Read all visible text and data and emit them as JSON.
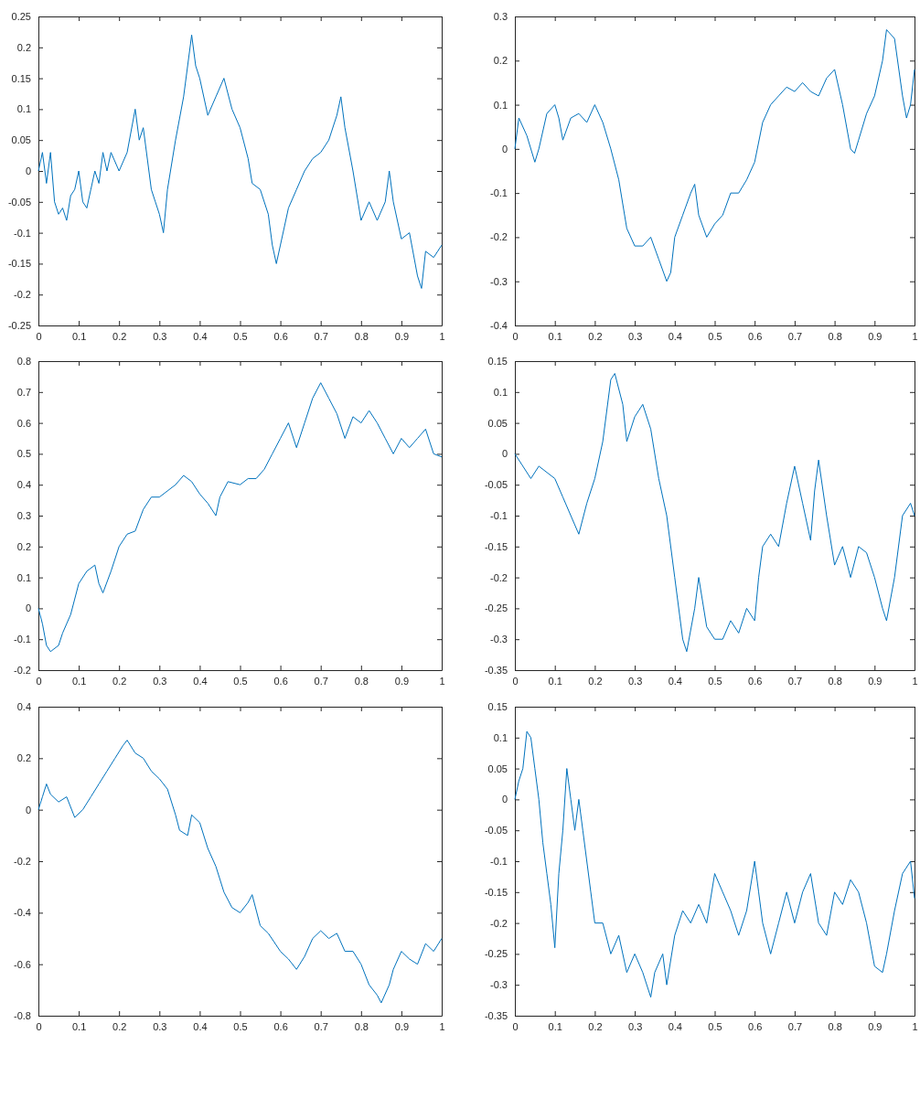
{
  "chart_data": [
    {
      "type": "line",
      "color": "#0072bd",
      "xlim": [
        0,
        1
      ],
      "xticks": [
        0,
        0.1,
        0.2,
        0.3,
        0.4,
        0.5,
        0.6,
        0.7,
        0.8,
        0.9,
        1
      ],
      "ylim": [
        -0.25,
        0.25
      ],
      "yticks": [
        -0.25,
        -0.2,
        -0.15,
        -0.1,
        -0.05,
        0,
        0.05,
        0.1,
        0.15,
        0.2,
        0.25
      ],
      "x": [
        0,
        0.01,
        0.02,
        0.03,
        0.04,
        0.05,
        0.06,
        0.07,
        0.08,
        0.09,
        0.1,
        0.11,
        0.12,
        0.13,
        0.14,
        0.15,
        0.16,
        0.17,
        0.18,
        0.2,
        0.22,
        0.24,
        0.25,
        0.26,
        0.28,
        0.29,
        0.3,
        0.31,
        0.32,
        0.34,
        0.36,
        0.38,
        0.39,
        0.4,
        0.42,
        0.44,
        0.46,
        0.48,
        0.5,
        0.52,
        0.53,
        0.55,
        0.57,
        0.58,
        0.59,
        0.6,
        0.62,
        0.64,
        0.66,
        0.68,
        0.7,
        0.72,
        0.74,
        0.75,
        0.76,
        0.78,
        0.8,
        0.82,
        0.84,
        0.86,
        0.87,
        0.88,
        0.9,
        0.92,
        0.94,
        0.95,
        0.96,
        0.98,
        1
      ],
      "values": [
        0,
        0.03,
        -0.02,
        0.03,
        -0.05,
        -0.07,
        -0.06,
        -0.08,
        -0.04,
        -0.03,
        0,
        -0.05,
        -0.06,
        -0.03,
        0,
        -0.02,
        0.03,
        0,
        0.03,
        0,
        0.03,
        0.1,
        0.05,
        0.07,
        -0.03,
        -0.05,
        -0.07,
        -0.1,
        -0.03,
        0.05,
        0.12,
        0.22,
        0.17,
        0.15,
        0.09,
        0.12,
        0.15,
        0.1,
        0.07,
        0.02,
        -0.02,
        -0.03,
        -0.07,
        -0.12,
        -0.15,
        -0.12,
        -0.06,
        -0.03,
        0,
        0.02,
        0.03,
        0.05,
        0.09,
        0.12,
        0.07,
        0,
        -0.08,
        -0.05,
        -0.08,
        -0.05,
        0,
        -0.05,
        -0.11,
        -0.1,
        -0.17,
        -0.19,
        -0.13,
        -0.14,
        -0.12
      ]
    },
    {
      "type": "line",
      "color": "#0072bd",
      "xlim": [
        0,
        1
      ],
      "xticks": [
        0,
        0.1,
        0.2,
        0.3,
        0.4,
        0.5,
        0.6,
        0.7,
        0.8,
        0.9,
        1
      ],
      "ylim": [
        -0.4,
        0.3
      ],
      "yticks": [
        -0.4,
        -0.3,
        -0.2,
        -0.1,
        0,
        0.1,
        0.2,
        0.3
      ],
      "x": [
        0,
        0.01,
        0.03,
        0.05,
        0.06,
        0.08,
        0.1,
        0.11,
        0.12,
        0.14,
        0.16,
        0.18,
        0.2,
        0.22,
        0.24,
        0.26,
        0.28,
        0.3,
        0.32,
        0.34,
        0.36,
        0.38,
        0.39,
        0.4,
        0.42,
        0.44,
        0.45,
        0.46,
        0.48,
        0.5,
        0.52,
        0.54,
        0.56,
        0.58,
        0.6,
        0.62,
        0.64,
        0.66,
        0.68,
        0.7,
        0.72,
        0.74,
        0.76,
        0.78,
        0.8,
        0.82,
        0.84,
        0.85,
        0.86,
        0.88,
        0.9,
        0.92,
        0.93,
        0.95,
        0.97,
        0.98,
        0.99,
        1
      ],
      "values": [
        0,
        0.07,
        0.03,
        -0.03,
        0,
        0.08,
        0.1,
        0.07,
        0.02,
        0.07,
        0.08,
        0.06,
        0.1,
        0.06,
        0,
        -0.07,
        -0.18,
        -0.22,
        -0.22,
        -0.2,
        -0.25,
        -0.3,
        -0.28,
        -0.2,
        -0.15,
        -0.1,
        -0.08,
        -0.15,
        -0.2,
        -0.17,
        -0.15,
        -0.1,
        -0.1,
        -0.07,
        -0.03,
        0.06,
        0.1,
        0.12,
        0.14,
        0.13,
        0.15,
        0.13,
        0.12,
        0.16,
        0.18,
        0.1,
        0,
        -0.01,
        0.02,
        0.08,
        0.12,
        0.2,
        0.27,
        0.25,
        0.12,
        0.07,
        0.1,
        0.18
      ]
    },
    {
      "type": "line",
      "color": "#0072bd",
      "xlim": [
        0,
        1
      ],
      "xticks": [
        0,
        0.1,
        0.2,
        0.3,
        0.4,
        0.5,
        0.6,
        0.7,
        0.8,
        0.9,
        1
      ],
      "ylim": [
        -0.2,
        0.8
      ],
      "yticks": [
        -0.2,
        -0.1,
        0,
        0.1,
        0.2,
        0.3,
        0.4,
        0.5,
        0.6,
        0.7,
        0.8
      ],
      "x": [
        0,
        0.01,
        0.02,
        0.03,
        0.05,
        0.06,
        0.08,
        0.1,
        0.12,
        0.14,
        0.15,
        0.16,
        0.18,
        0.2,
        0.22,
        0.24,
        0.26,
        0.28,
        0.3,
        0.32,
        0.34,
        0.36,
        0.38,
        0.4,
        0.42,
        0.44,
        0.45,
        0.47,
        0.5,
        0.52,
        0.54,
        0.56,
        0.58,
        0.6,
        0.62,
        0.64,
        0.66,
        0.68,
        0.7,
        0.72,
        0.74,
        0.76,
        0.78,
        0.8,
        0.82,
        0.84,
        0.86,
        0.88,
        0.9,
        0.92,
        0.94,
        0.96,
        0.98,
        1
      ],
      "values": [
        0,
        -0.05,
        -0.12,
        -0.14,
        -0.12,
        -0.08,
        -0.02,
        0.08,
        0.12,
        0.14,
        0.08,
        0.05,
        0.12,
        0.2,
        0.24,
        0.25,
        0.32,
        0.36,
        0.36,
        0.38,
        0.4,
        0.43,
        0.41,
        0.37,
        0.34,
        0.3,
        0.36,
        0.41,
        0.4,
        0.42,
        0.42,
        0.45,
        0.5,
        0.55,
        0.6,
        0.52,
        0.6,
        0.68,
        0.73,
        0.68,
        0.63,
        0.55,
        0.62,
        0.6,
        0.64,
        0.6,
        0.55,
        0.5,
        0.55,
        0.52,
        0.55,
        0.58,
        0.5,
        0.49
      ]
    },
    {
      "type": "line",
      "color": "#0072bd",
      "xlim": [
        0,
        1
      ],
      "xticks": [
        0,
        0.1,
        0.2,
        0.3,
        0.4,
        0.5,
        0.6,
        0.7,
        0.8,
        0.9,
        1
      ],
      "ylim": [
        -0.35,
        0.15
      ],
      "yticks": [
        -0.35,
        -0.3,
        -0.25,
        -0.2,
        -0.15,
        -0.1,
        -0.05,
        0,
        0.05,
        0.1,
        0.15
      ],
      "x": [
        0,
        0.02,
        0.04,
        0.06,
        0.08,
        0.1,
        0.12,
        0.14,
        0.16,
        0.18,
        0.2,
        0.22,
        0.24,
        0.25,
        0.27,
        0.28,
        0.3,
        0.32,
        0.34,
        0.36,
        0.38,
        0.4,
        0.42,
        0.43,
        0.45,
        0.46,
        0.48,
        0.5,
        0.52,
        0.54,
        0.56,
        0.58,
        0.6,
        0.61,
        0.62,
        0.64,
        0.66,
        0.68,
        0.7,
        0.72,
        0.74,
        0.75,
        0.76,
        0.78,
        0.8,
        0.82,
        0.84,
        0.86,
        0.88,
        0.9,
        0.92,
        0.93,
        0.95,
        0.97,
        0.99,
        1
      ],
      "values": [
        0,
        -0.02,
        -0.04,
        -0.02,
        -0.03,
        -0.04,
        -0.07,
        -0.1,
        -0.13,
        -0.08,
        -0.04,
        0.02,
        0.12,
        0.13,
        0.08,
        0.02,
        0.06,
        0.08,
        0.04,
        -0.04,
        -0.1,
        -0.2,
        -0.3,
        -0.32,
        -0.25,
        -0.2,
        -0.28,
        -0.3,
        -0.3,
        -0.27,
        -0.29,
        -0.25,
        -0.27,
        -0.2,
        -0.15,
        -0.13,
        -0.15,
        -0.08,
        -0.02,
        -0.08,
        -0.14,
        -0.06,
        -0.01,
        -0.1,
        -0.18,
        -0.15,
        -0.2,
        -0.15,
        -0.16,
        -0.2,
        -0.25,
        -0.27,
        -0.2,
        -0.1,
        -0.08,
        -0.1
      ]
    },
    {
      "type": "line",
      "color": "#0072bd",
      "xlim": [
        0,
        1
      ],
      "xticks": [
        0,
        0.1,
        0.2,
        0.3,
        0.4,
        0.5,
        0.6,
        0.7,
        0.8,
        0.9,
        1
      ],
      "ylim": [
        -0.8,
        0.4
      ],
      "yticks": [
        -0.8,
        -0.6,
        -0.4,
        -0.2,
        0,
        0.2,
        0.4
      ],
      "x": [
        0,
        0.01,
        0.02,
        0.03,
        0.05,
        0.07,
        0.09,
        0.11,
        0.13,
        0.15,
        0.17,
        0.19,
        0.21,
        0.22,
        0.24,
        0.26,
        0.28,
        0.3,
        0.32,
        0.34,
        0.35,
        0.37,
        0.38,
        0.4,
        0.42,
        0.44,
        0.46,
        0.48,
        0.5,
        0.52,
        0.53,
        0.55,
        0.57,
        0.6,
        0.62,
        0.64,
        0.66,
        0.68,
        0.7,
        0.72,
        0.74,
        0.76,
        0.78,
        0.8,
        0.82,
        0.84,
        0.85,
        0.87,
        0.88,
        0.9,
        0.92,
        0.94,
        0.96,
        0.98,
        1
      ],
      "values": [
        0,
        0.05,
        0.1,
        0.06,
        0.03,
        0.05,
        -0.03,
        0,
        0.05,
        0.1,
        0.15,
        0.2,
        0.25,
        0.27,
        0.22,
        0.2,
        0.15,
        0.12,
        0.08,
        -0.02,
        -0.08,
        -0.1,
        -0.02,
        -0.05,
        -0.15,
        -0.22,
        -0.32,
        -0.38,
        -0.4,
        -0.36,
        -0.33,
        -0.45,
        -0.48,
        -0.55,
        -0.58,
        -0.62,
        -0.57,
        -0.5,
        -0.47,
        -0.5,
        -0.48,
        -0.55,
        -0.55,
        -0.6,
        -0.68,
        -0.72,
        -0.75,
        -0.68,
        -0.62,
        -0.55,
        -0.58,
        -0.6,
        -0.52,
        -0.55,
        -0.5
      ]
    },
    {
      "type": "line",
      "color": "#0072bd",
      "xlim": [
        0,
        1
      ],
      "xticks": [
        0,
        0.1,
        0.2,
        0.3,
        0.4,
        0.5,
        0.6,
        0.7,
        0.8,
        0.9,
        1
      ],
      "ylim": [
        -0.35,
        0.15
      ],
      "yticks": [
        -0.35,
        -0.3,
        -0.25,
        -0.2,
        -0.15,
        -0.1,
        -0.05,
        0,
        0.05,
        0.1,
        0.15
      ],
      "x": [
        0,
        0.01,
        0.02,
        0.03,
        0.04,
        0.05,
        0.06,
        0.07,
        0.08,
        0.09,
        0.1,
        0.11,
        0.12,
        0.13,
        0.14,
        0.15,
        0.16,
        0.17,
        0.19,
        0.2,
        0.22,
        0.24,
        0.26,
        0.28,
        0.3,
        0.32,
        0.34,
        0.35,
        0.37,
        0.38,
        0.4,
        0.42,
        0.44,
        0.46,
        0.48,
        0.5,
        0.52,
        0.54,
        0.56,
        0.58,
        0.6,
        0.61,
        0.62,
        0.64,
        0.66,
        0.68,
        0.7,
        0.72,
        0.74,
        0.76,
        0.78,
        0.8,
        0.82,
        0.84,
        0.86,
        0.88,
        0.9,
        0.92,
        0.93,
        0.95,
        0.97,
        0.99,
        1
      ],
      "values": [
        0,
        0.03,
        0.05,
        0.11,
        0.1,
        0.05,
        0,
        -0.07,
        -0.12,
        -0.17,
        -0.24,
        -0.12,
        -0.05,
        0.05,
        0,
        -0.05,
        0,
        -0.05,
        -0.15,
        -0.2,
        -0.2,
        -0.25,
        -0.22,
        -0.28,
        -0.25,
        -0.28,
        -0.32,
        -0.28,
        -0.25,
        -0.3,
        -0.22,
        -0.18,
        -0.2,
        -0.17,
        -0.2,
        -0.12,
        -0.15,
        -0.18,
        -0.22,
        -0.18,
        -0.1,
        -0.15,
        -0.2,
        -0.25,
        -0.2,
        -0.15,
        -0.2,
        -0.15,
        -0.12,
        -0.2,
        -0.22,
        -0.15,
        -0.17,
        -0.13,
        -0.15,
        -0.2,
        -0.27,
        -0.28,
        -0.25,
        -0.18,
        -0.12,
        -0.1,
        -0.16
      ]
    }
  ]
}
